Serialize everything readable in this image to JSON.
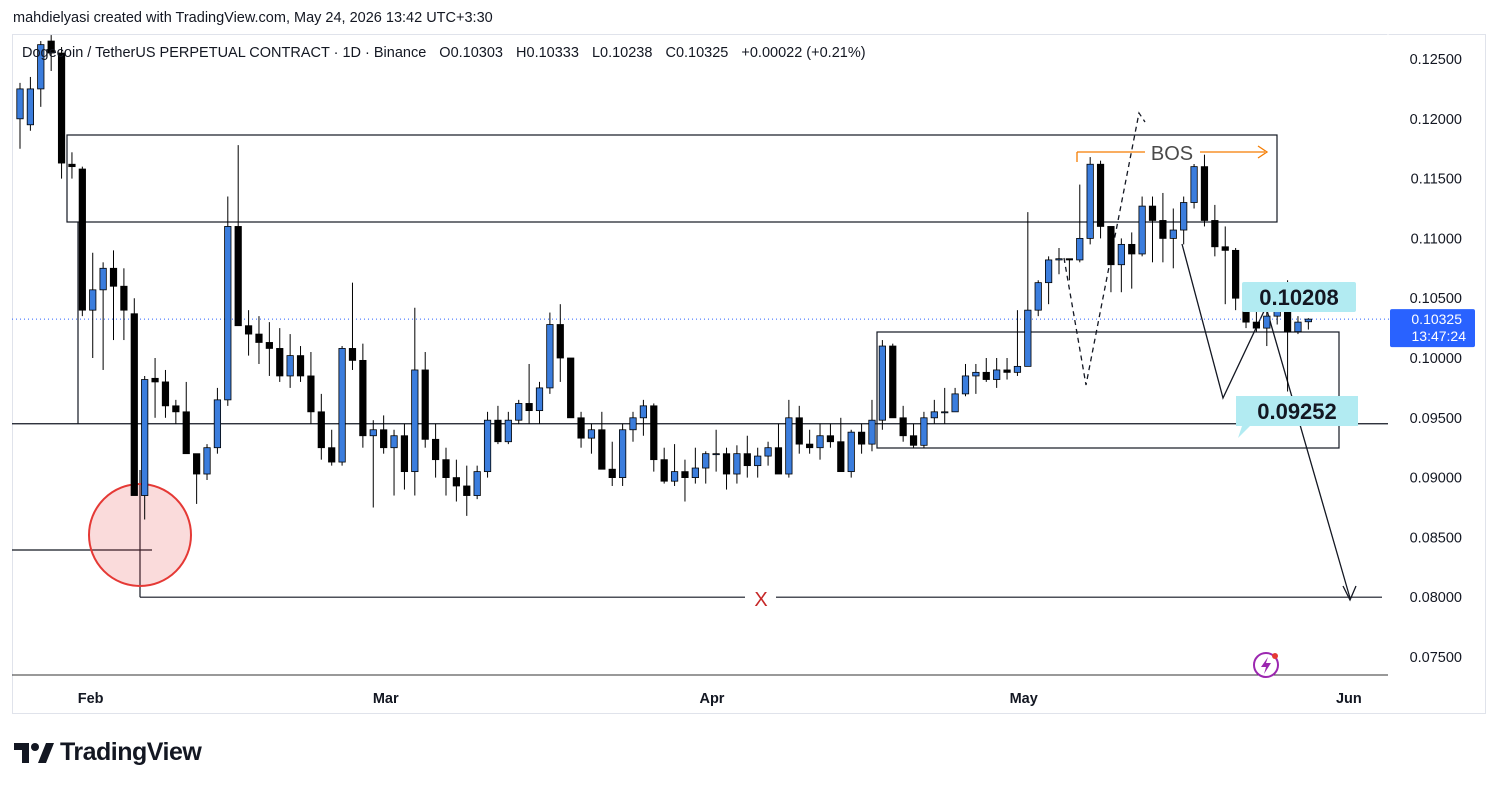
{
  "credit": "mahdielyasi created with TradingView.com, May 24, 2026 13:42 UTC+3:30",
  "legend": {
    "symbol": "Dogecoin / TetherUS PERPETUAL CONTRACT · 1D · Binance",
    "open": "O0.10303",
    "high": "H0.10333",
    "low": "L0.10238",
    "close": "C0.10325",
    "change": "+0.00022 (+0.21%)"
  },
  "brand": "TradingView",
  "colors": {
    "bull": "#3b7ddd",
    "bear": "#000000",
    "price_tag": "#2962ff",
    "label_bg": "#b2ebf2",
    "bos_arrow": "#f57c00",
    "circle": "#e53935",
    "x_mark": "#c62828"
  },
  "price_tag": {
    "price": "0.10325",
    "countdown": "13:47:24"
  },
  "annotations": {
    "bos": "BOS",
    "label_high": "0.10208",
    "label_low": "0.09252",
    "x_mark": "X",
    "target_price": 0.08,
    "key_level": 0.0945
  },
  "chart_data": {
    "type": "candlestick",
    "title": "Dogecoin / TetherUS PERPETUAL CONTRACT · 1D · Binance",
    "ylim": [
      0.0725,
      0.1265
    ],
    "y_ticks": [
      "0.12500",
      "0.12000",
      "0.11500",
      "0.11000",
      "0.10500",
      "0.10000",
      "0.09500",
      "0.09000",
      "0.08500",
      "0.08000",
      "0.07500"
    ],
    "x_ticks": [
      "Feb",
      "Mar",
      "Apr",
      "May",
      "Jun"
    ],
    "grid": false,
    "last_close": 0.10325,
    "ohlc": [
      [
        0.12,
        0.123,
        0.1175,
        0.1225
      ],
      [
        0.1195,
        0.1235,
        0.119,
        0.1225
      ],
      [
        0.1225,
        0.1265,
        0.121,
        0.1262
      ],
      [
        0.1265,
        0.127,
        0.124,
        0.1255
      ],
      [
        0.1255,
        0.126,
        0.115,
        0.1163
      ],
      [
        0.1162,
        0.1172,
        0.115,
        0.116
      ],
      [
        0.1158,
        0.116,
        0.1035,
        0.104
      ],
      [
        0.104,
        0.1088,
        0.1,
        0.1057
      ],
      [
        0.1057,
        0.108,
        0.099,
        0.1075
      ],
      [
        0.1075,
        0.109,
        0.1015,
        0.106
      ],
      [
        0.106,
        0.1075,
        0.1015,
        0.104
      ],
      [
        0.1037,
        0.105,
        0.0885,
        0.0885
      ],
      [
        0.0885,
        0.0985,
        0.0865,
        0.0982
      ],
      [
        0.0983,
        0.1,
        0.095,
        0.098
      ],
      [
        0.098,
        0.099,
        0.095,
        0.096
      ],
      [
        0.096,
        0.0965,
        0.0945,
        0.0955
      ],
      [
        0.0955,
        0.098,
        0.092,
        0.092
      ],
      [
        0.092,
        0.092,
        0.0878,
        0.0903
      ],
      [
        0.0903,
        0.0928,
        0.0898,
        0.0925
      ],
      [
        0.0925,
        0.0975,
        0.092,
        0.0965
      ],
      [
        0.0965,
        0.1135,
        0.096,
        0.111
      ],
      [
        0.111,
        0.1178,
        0.103,
        0.1027
      ],
      [
        0.1027,
        0.104,
        0.1002,
        0.102
      ],
      [
        0.102,
        0.1035,
        0.0995,
        0.1013
      ],
      [
        0.1013,
        0.103,
        0.0985,
        0.1008
      ],
      [
        0.1008,
        0.1025,
        0.098,
        0.0985
      ],
      [
        0.0985,
        0.102,
        0.0975,
        0.1002
      ],
      [
        0.1002,
        0.101,
        0.098,
        0.0985
      ],
      [
        0.0985,
        0.1005,
        0.0945,
        0.0955
      ],
      [
        0.0955,
        0.097,
        0.0915,
        0.0925
      ],
      [
        0.0925,
        0.094,
        0.091,
        0.0913
      ],
      [
        0.0913,
        0.101,
        0.091,
        0.1008
      ],
      [
        0.1008,
        0.1063,
        0.099,
        0.0998
      ],
      [
        0.0998,
        0.1012,
        0.0925,
        0.0935
      ],
      [
        0.0935,
        0.0948,
        0.0875,
        0.094
      ],
      [
        0.094,
        0.0952,
        0.092,
        0.0925
      ],
      [
        0.0925,
        0.094,
        0.0885,
        0.0935
      ],
      [
        0.0935,
        0.0945,
        0.089,
        0.0905
      ],
      [
        0.0905,
        0.1042,
        0.0885,
        0.099
      ],
      [
        0.099,
        0.1005,
        0.0925,
        0.0932
      ],
      [
        0.0932,
        0.0945,
        0.09,
        0.0915
      ],
      [
        0.0915,
        0.0925,
        0.0885,
        0.09
      ],
      [
        0.09,
        0.0915,
        0.088,
        0.0893
      ],
      [
        0.0893,
        0.091,
        0.0868,
        0.0885
      ],
      [
        0.0885,
        0.091,
        0.0882,
        0.0905
      ],
      [
        0.0905,
        0.0955,
        0.09,
        0.0948
      ],
      [
        0.0948,
        0.096,
        0.0928,
        0.093
      ],
      [
        0.093,
        0.0955,
        0.0928,
        0.0948
      ],
      [
        0.0948,
        0.0965,
        0.0945,
        0.0962
      ],
      [
        0.0962,
        0.0995,
        0.0945,
        0.0956
      ],
      [
        0.0956,
        0.098,
        0.0945,
        0.0975
      ],
      [
        0.0975,
        0.1038,
        0.097,
        0.1028
      ],
      [
        0.1028,
        0.1045,
        0.098,
        0.1
      ],
      [
        0.1,
        0.1,
        0.095,
        0.095
      ],
      [
        0.095,
        0.0955,
        0.0925,
        0.0933
      ],
      [
        0.0933,
        0.0945,
        0.092,
        0.094
      ],
      [
        0.094,
        0.0955,
        0.091,
        0.0907
      ],
      [
        0.0907,
        0.093,
        0.0893,
        0.09
      ],
      [
        0.09,
        0.0945,
        0.0893,
        0.094
      ],
      [
        0.094,
        0.0955,
        0.093,
        0.095
      ],
      [
        0.095,
        0.0965,
        0.0935,
        0.096
      ],
      [
        0.096,
        0.0962,
        0.0905,
        0.0915
      ],
      [
        0.0915,
        0.0925,
        0.0895,
        0.0897
      ],
      [
        0.0897,
        0.0928,
        0.0893,
        0.0905
      ],
      [
        0.0905,
        0.0915,
        0.088,
        0.09
      ],
      [
        0.09,
        0.0925,
        0.0895,
        0.0908
      ],
      [
        0.0908,
        0.0922,
        0.0895,
        0.092
      ],
      [
        0.092,
        0.094,
        0.0905,
        0.092
      ],
      [
        0.092,
        0.0925,
        0.089,
        0.0903
      ],
      [
        0.0903,
        0.0927,
        0.0895,
        0.092
      ],
      [
        0.092,
        0.0935,
        0.09,
        0.091
      ],
      [
        0.091,
        0.0925,
        0.09,
        0.0918
      ],
      [
        0.0918,
        0.093,
        0.091,
        0.0925
      ],
      [
        0.0925,
        0.0945,
        0.0905,
        0.0903
      ],
      [
        0.0903,
        0.0965,
        0.09,
        0.095
      ],
      [
        0.095,
        0.096,
        0.092,
        0.0928
      ],
      [
        0.0928,
        0.094,
        0.092,
        0.0925
      ],
      [
        0.0925,
        0.0945,
        0.0915,
        0.0935
      ],
      [
        0.0935,
        0.0945,
        0.0925,
        0.093
      ],
      [
        0.093,
        0.095,
        0.0905,
        0.0905
      ],
      [
        0.0905,
        0.094,
        0.09,
        0.0938
      ],
      [
        0.0938,
        0.0945,
        0.092,
        0.0928
      ],
      [
        0.0928,
        0.0965,
        0.0922,
        0.0948
      ],
      [
        0.0948,
        0.1015,
        0.094,
        0.101
      ],
      [
        0.101,
        0.1012,
        0.095,
        0.095
      ],
      [
        0.095,
        0.096,
        0.093,
        0.0935
      ],
      [
        0.0935,
        0.0945,
        0.0925,
        0.0927
      ],
      [
        0.0927,
        0.0955,
        0.0925,
        0.095
      ],
      [
        0.095,
        0.0965,
        0.0945,
        0.0955
      ],
      [
        0.0955,
        0.0975,
        0.0945,
        0.0955
      ],
      [
        0.0955,
        0.0975,
        0.0955,
        0.097
      ],
      [
        0.097,
        0.0995,
        0.0968,
        0.0985
      ],
      [
        0.0985,
        0.0995,
        0.097,
        0.0988
      ],
      [
        0.0988,
        0.1,
        0.098,
        0.0982
      ],
      [
        0.0982,
        0.1,
        0.0975,
        0.099
      ],
      [
        0.099,
        0.1,
        0.0982,
        0.0988
      ],
      [
        0.0988,
        0.104,
        0.0985,
        0.0993
      ],
      [
        0.0993,
        0.1122,
        0.0993,
        0.104
      ],
      [
        0.104,
        0.1065,
        0.1035,
        0.1063
      ],
      [
        0.1063,
        0.1085,
        0.1045,
        0.1082
      ],
      [
        0.1082,
        0.1092,
        0.107,
        0.1083
      ],
      [
        0.1083,
        0.1083,
        0.1065,
        0.1082
      ],
      [
        0.1082,
        0.1145,
        0.108,
        0.11
      ],
      [
        0.11,
        0.1168,
        0.1095,
        0.1162
      ],
      [
        0.1162,
        0.1165,
        0.11,
        0.111
      ],
      [
        0.111,
        0.111,
        0.1055,
        0.1078
      ],
      [
        0.1078,
        0.11,
        0.1055,
        0.1095
      ],
      [
        0.1095,
        0.1105,
        0.1058,
        0.1087
      ],
      [
        0.1087,
        0.1135,
        0.1085,
        0.1127
      ],
      [
        0.1127,
        0.1135,
        0.108,
        0.1115
      ],
      [
        0.1115,
        0.1138,
        0.108,
        0.11
      ],
      [
        0.11,
        0.1125,
        0.1075,
        0.1107
      ],
      [
        0.1107,
        0.1135,
        0.1095,
        0.113
      ],
      [
        0.113,
        0.1182,
        0.1125,
        0.116
      ],
      [
        0.116,
        0.117,
        0.111,
        0.1115
      ],
      [
        0.1115,
        0.1128,
        0.1085,
        0.1093
      ],
      [
        0.1093,
        0.111,
        0.1045,
        0.109
      ],
      [
        0.109,
        0.1092,
        0.104,
        0.105
      ],
      [
        0.105,
        0.1055,
        0.1025,
        0.103
      ],
      [
        0.103,
        0.1045,
        0.1022,
        0.1025
      ],
      [
        0.1025,
        0.104,
        0.101,
        0.1035
      ],
      [
        0.1035,
        0.1062,
        0.1028,
        0.1055
      ],
      [
        0.1055,
        0.1065,
        0.0972,
        0.1022
      ],
      [
        0.1022,
        0.1035,
        0.102,
        0.103
      ],
      [
        0.10303,
        0.10333,
        0.10238,
        0.10325
      ]
    ]
  }
}
